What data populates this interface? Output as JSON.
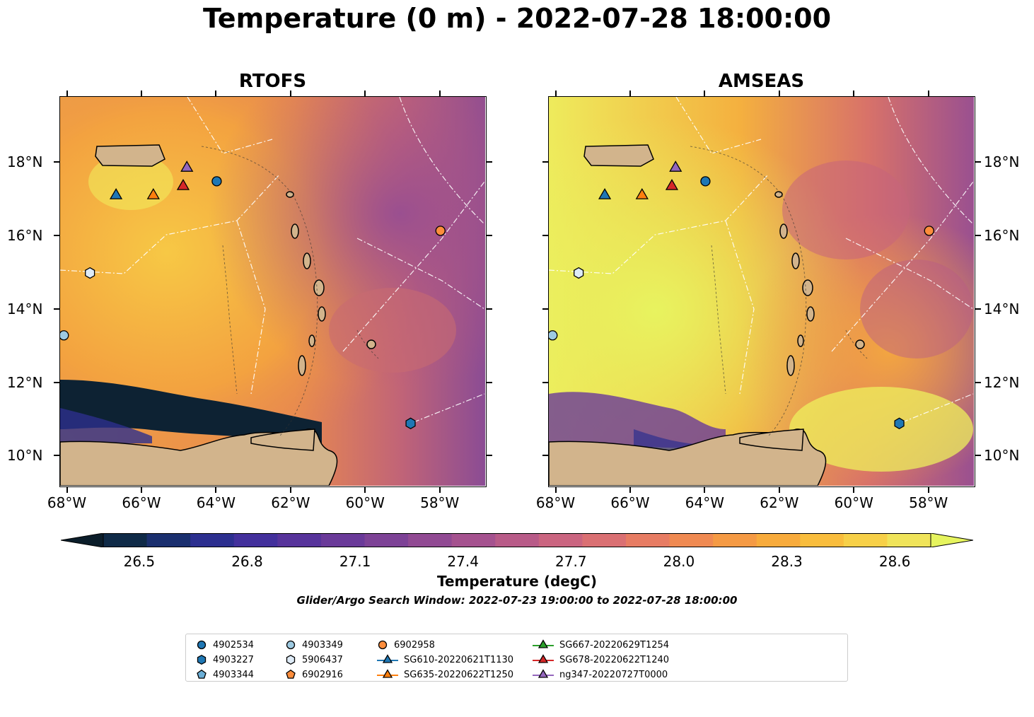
{
  "title": "Temperature (0 m) - 2022-07-28 18:00:00",
  "panels": [
    {
      "title": "RTOFS"
    },
    {
      "title": "AMSEAS"
    }
  ],
  "axes": {
    "lon_range": [
      -68.2,
      -56.8
    ],
    "lat_range": [
      9.2,
      19.8
    ],
    "x_ticks": [
      "68°W",
      "66°W",
      "64°W",
      "62°W",
      "60°W",
      "58°W"
    ],
    "x_tick_values": [
      -68,
      -66,
      -64,
      -62,
      -60,
      -58
    ],
    "y_ticks": [
      "18°N",
      "16°N",
      "14°N",
      "12°N",
      "10°N"
    ],
    "y_tick_values": [
      18,
      16,
      14,
      12,
      10
    ],
    "y_labels_side": [
      "left",
      "right"
    ]
  },
  "colorbar": {
    "label": "Temperature (degC)",
    "tick_labels": [
      "26.5",
      "26.8",
      "27.1",
      "27.4",
      "27.7",
      "28.0",
      "28.3",
      "28.6"
    ],
    "range": [
      26.4,
      28.7
    ],
    "extend": "both",
    "colormap": "thermal",
    "colors": [
      "#0b1d2a",
      "#0f2a47",
      "#1a2f6e",
      "#2c2f8f",
      "#43309c",
      "#57339b",
      "#6a3a99",
      "#7d4296",
      "#914a93",
      "#a5528f",
      "#b85b88",
      "#ca6580",
      "#da7073",
      "#e77c63",
      "#f08a52",
      "#f59a44",
      "#f8ab3c",
      "#f9bd3d",
      "#f7d048",
      "#f0e45a",
      "#e6f45e"
    ]
  },
  "search_window": "Glider/Argo Search Window: 2022-07-23 19:00:00 to 2022-07-28 18:00:00",
  "colors": {
    "ocean_warm": "#f0a23c",
    "ocean_cool": "#8a4d96",
    "cold_core": "#0d2233",
    "land": "#d2b48c",
    "argo_blue_dark": "#1f77b4",
    "argo_blue_light": "#9ecae1",
    "argo_pale": "#deebf7",
    "argo_orange": "#fd8d3c",
    "glider_sg610": "#1f77b4",
    "glider_sg635": "#ff7f0e",
    "glider_sg667": "#2ca02c",
    "glider_sg678": "#d62728",
    "glider_ng347": "#9467bd"
  },
  "observations": [
    {
      "id": "4902534",
      "kind": "argo",
      "marker": "circle",
      "color": "#1f77b4",
      "lon": -64.0,
      "lat": 17.5
    },
    {
      "id": "4903227",
      "kind": "argo",
      "marker": "hexagon",
      "color": "#1f77b4",
      "lon": -58.8,
      "lat": 10.9
    },
    {
      "id": "4903349",
      "kind": "argo",
      "marker": "circle",
      "color": "#9ecae1",
      "lon": -68.1,
      "lat": 13.3
    },
    {
      "id": "5906437",
      "kind": "argo",
      "marker": "hexagon",
      "color": "#deebf7",
      "lon": -67.4,
      "lat": 15.0
    },
    {
      "id": "6902958",
      "kind": "argo",
      "marker": "circle",
      "color": "#fd8d3c",
      "lon": -58.0,
      "lat": 16.15
    },
    {
      "id": "SG610-20220621T1130",
      "kind": "glider",
      "marker": "triangle",
      "color": "#1f77b4",
      "lon": -66.7,
      "lat": 17.15
    },
    {
      "id": "SG635-20220622T1250",
      "kind": "glider",
      "marker": "triangle",
      "color": "#ff7f0e",
      "lon": -65.7,
      "lat": 17.15
    },
    {
      "id": "SG678-20220622T1240",
      "kind": "glider",
      "marker": "triangle",
      "color": "#d62728",
      "lon": -64.9,
      "lat": 17.4
    },
    {
      "id": "ng347-20220727T0000",
      "kind": "glider",
      "marker": "triangle",
      "color": "#9467bd",
      "lon": -64.8,
      "lat": 17.9
    }
  ],
  "legend": [
    {
      "label": "4902534",
      "marker": "circle",
      "color": "#1f77b4"
    },
    {
      "label": "4903227",
      "marker": "hexagon",
      "color": "#1f77b4"
    },
    {
      "label": "4903344",
      "marker": "pentagon",
      "color": "#6baed6"
    },
    {
      "label": "4903349",
      "marker": "circle",
      "color": "#9ecae1"
    },
    {
      "label": "5906437",
      "marker": "hexagon",
      "color": "#deebf7"
    },
    {
      "label": "6902916",
      "marker": "pentagon",
      "color": "#fd8d3c"
    },
    {
      "label": "6902958",
      "marker": "circle",
      "color": "#fd8d3c"
    },
    {
      "label": "SG610-20220621T1130",
      "marker": "triangle-line",
      "color": "#1f77b4"
    },
    {
      "label": "SG635-20220622T1250",
      "marker": "triangle-line",
      "color": "#ff7f0e"
    },
    {
      "label": "SG667-20220629T1254",
      "marker": "triangle-line",
      "color": "#2ca02c"
    },
    {
      "label": "SG678-20220622T1240",
      "marker": "triangle-line",
      "color": "#d62728"
    },
    {
      "label": "ng347-20220727T0000",
      "marker": "triangle-line",
      "color": "#9467bd"
    }
  ]
}
